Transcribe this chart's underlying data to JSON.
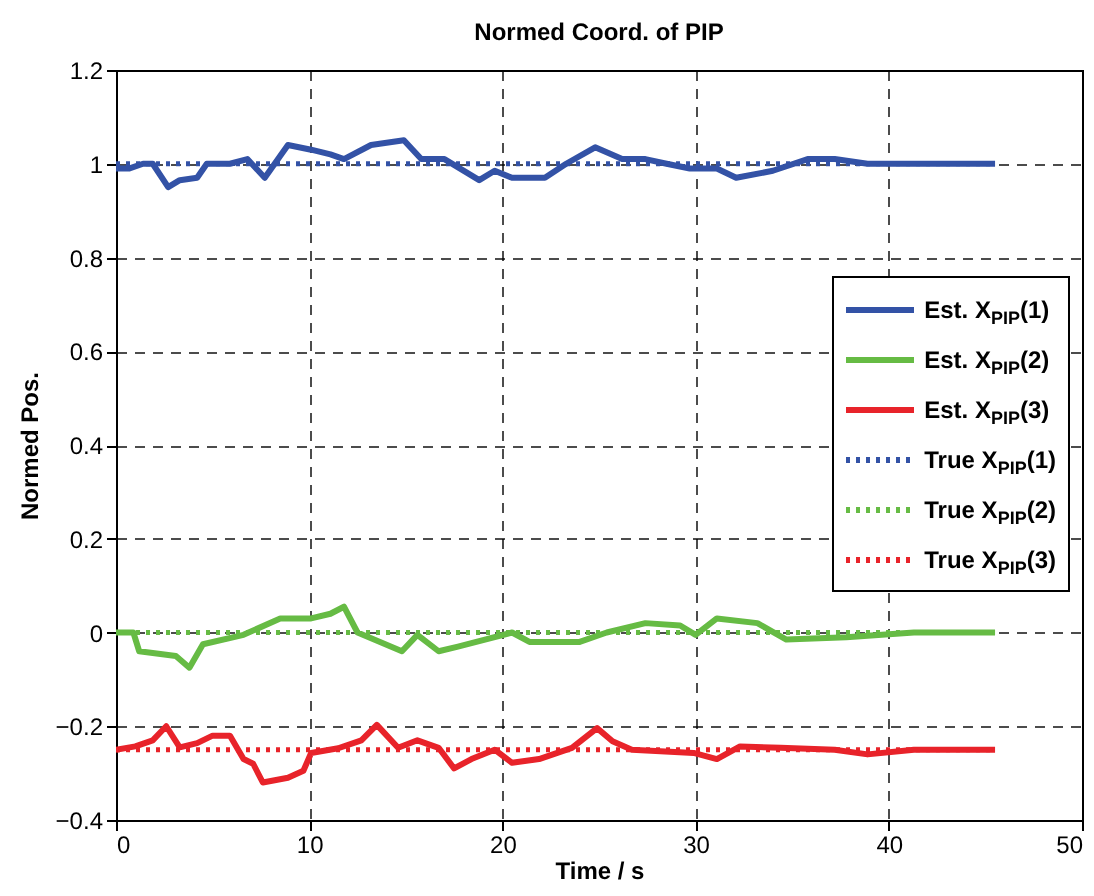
{
  "chart_data": {
    "type": "line",
    "title": "Normed Coord. of PIP",
    "xlabel": "Time / s",
    "ylabel": "Normed Pos.",
    "xlim": [
      0,
      50
    ],
    "xticks": [
      0,
      10,
      20,
      30,
      40,
      50
    ],
    "ylim": [
      -0.4,
      1.2
    ],
    "yticks": [
      -0.4,
      -0.2,
      0,
      0.2,
      0.4,
      0.6,
      0.8,
      1,
      1.2
    ],
    "grid": true,
    "legend": "right",
    "marker": "none",
    "series": [
      {
        "name": "Est. X$_{PIP}$(1)",
        "color": "#3352a6",
        "line_style": "solid",
        "x": [
          0,
          0.7,
          1.4,
          1.9,
          2.7,
          3.3,
          4.2,
          4.7,
          5.9,
          6.8,
          7.7,
          8.9,
          10.1,
          11.1,
          11.8,
          13.2,
          14.9,
          15.8,
          17.0,
          18.8,
          19.6,
          20.5,
          22.2,
          23.3,
          24.8,
          26.2,
          27.4,
          28.5,
          29.7,
          31.1,
          32.1,
          34.0,
          35.8,
          37.2,
          38.9,
          45.5
        ],
        "values": [
          0.99,
          0.99,
          1.0,
          1.0,
          0.95,
          0.965,
          0.97,
          1.0,
          1.0,
          1.01,
          0.97,
          1.04,
          1.03,
          1.02,
          1.01,
          1.04,
          1.05,
          1.01,
          1.01,
          0.965,
          0.985,
          0.97,
          0.97,
          1.0,
          1.035,
          1.01,
          1.01,
          1.0,
          0.99,
          0.99,
          0.97,
          0.985,
          1.01,
          1.01,
          1.0,
          1.0
        ]
      },
      {
        "name": "Est. X$_{PIP}$(2)",
        "color": "#66bb44",
        "line_style": "solid",
        "x": [
          0,
          0.9,
          1.2,
          3.1,
          3.8,
          4.5,
          6.6,
          8.5,
          10.1,
          11.1,
          11.8,
          12.5,
          14.8,
          15.6,
          16.7,
          17.7,
          20.5,
          21.4,
          24.0,
          25.4,
          27.4,
          29.2,
          30.0,
          31.1,
          33.2,
          34.7,
          37.8,
          41.3,
          45.5
        ],
        "values": [
          0,
          0,
          -0.04,
          -0.05,
          -0.075,
          -0.025,
          -0.005,
          0.03,
          0.03,
          0.04,
          0.055,
          0,
          -0.04,
          -0.005,
          -0.04,
          -0.03,
          0,
          -0.02,
          -0.02,
          0,
          0.02,
          0.015,
          -0.005,
          0.03,
          0.02,
          -0.015,
          -0.01,
          0,
          0
        ]
      },
      {
        "name": "Est. X$_{PIP}$(3)",
        "color": "#e8232a",
        "line_style": "solid",
        "x": [
          0,
          1.0,
          1.9,
          2.6,
          3.3,
          4.2,
          5.0,
          5.9,
          6.6,
          7.1,
          7.6,
          8.9,
          9.7,
          10.1,
          11.5,
          12.7,
          13.5,
          14.6,
          15.6,
          16.7,
          17.5,
          18.4,
          19.6,
          20.5,
          21.9,
          23.6,
          24.9,
          25.7,
          26.7,
          29.9,
          31.1,
          32.3,
          34.4,
          37.2,
          38.9,
          41.3,
          45.5
        ],
        "values": [
          -0.25,
          -0.243,
          -0.23,
          -0.2,
          -0.245,
          -0.236,
          -0.22,
          -0.22,
          -0.27,
          -0.28,
          -0.32,
          -0.31,
          -0.295,
          -0.257,
          -0.247,
          -0.23,
          -0.197,
          -0.246,
          -0.23,
          -0.246,
          -0.29,
          -0.27,
          -0.25,
          -0.278,
          -0.27,
          -0.246,
          -0.204,
          -0.232,
          -0.25,
          -0.257,
          -0.27,
          -0.243,
          -0.246,
          -0.25,
          -0.26,
          -0.25,
          -0.25
        ]
      },
      {
        "name": "True X$_{PIP}$(1)",
        "color": "#3352a6",
        "line_style": "dotted",
        "x": [
          0,
          45.5
        ],
        "values": [
          1,
          1
        ]
      },
      {
        "name": "True X$_{PIP}$(2)",
        "color": "#66bb44",
        "line_style": "dotted",
        "x": [
          0,
          45.5
        ],
        "values": [
          0,
          0
        ]
      },
      {
        "name": "True X$_{PIP}$(3)",
        "color": "#e8232a",
        "line_style": "dotted",
        "x": [
          0,
          45.5
        ],
        "values": [
          -0.25,
          -0.25
        ]
      }
    ]
  }
}
